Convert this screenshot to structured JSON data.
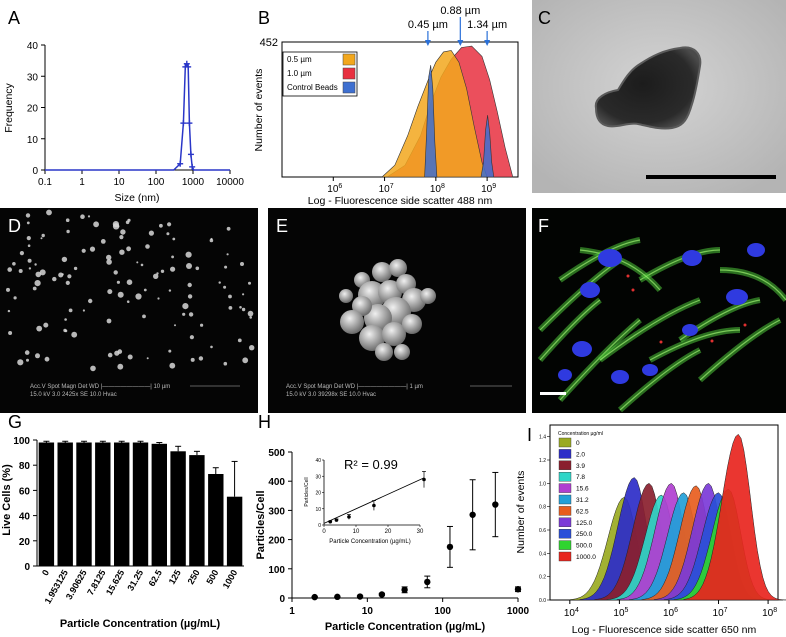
{
  "panels": {
    "a": "A",
    "b": "B",
    "c": "C",
    "d": "D",
    "e": "E",
    "f": "F",
    "g": "G",
    "h": "H",
    "i": "I"
  },
  "sem_d": {
    "line1": "Acc.V  Spot Magn   Det  WD  |————————| 10 µm",
    "line2": "15.0 kV 3.0  2425x  SE  10.0 Hvac"
  },
  "sem_e": {
    "line1": "Acc.V  Spot Magn   Det  WD  |————————| 1 µm",
    "line2": "15.0 kV 3.0  39298x  SE  10.0 Hvac"
  },
  "colors": {
    "blue_line": "#2a36c8",
    "beads": "#3e6fd0",
    "p05": "#f2a71d",
    "p10": "#e83040",
    "bar": "#000000"
  },
  "chart_data": [
    {
      "id": "A",
      "type": "line",
      "xlabel": "Size (nm)",
      "ylabel": "Frequency",
      "xscale": "log",
      "xlim": [
        0.1,
        10000
      ],
      "ylim": [
        0,
        40
      ],
      "xticks": [
        "0.1",
        "1",
        "10",
        "100",
        "1000",
        "10000"
      ],
      "yticks": [
        "0",
        "10",
        "20",
        "30",
        "40"
      ],
      "series": [
        {
          "x": [
            0.1,
            300,
            450,
            550,
            620,
            680,
            740,
            800,
            880,
            950,
            1050,
            10000
          ],
          "y": [
            0,
            0,
            2,
            15,
            33,
            34,
            33,
            15,
            5,
            1,
            0,
            0
          ]
        }
      ]
    },
    {
      "id": "B",
      "type": "area",
      "xlabel": "Log - Fluorescence side scatter 488 nm",
      "ylabel": "Number of events",
      "xscale": "log",
      "xlim": [
        100000,
        4000000000
      ],
      "ylim": [
        0,
        452
      ],
      "y_top_label": "452",
      "xticks_exp": [
        {
          "base": "10",
          "exp": "6",
          "v": 6
        },
        {
          "base": "10",
          "exp": "7",
          "v": 7
        },
        {
          "base": "10",
          "exp": "8",
          "v": 8
        },
        {
          "base": "10",
          "exp": "9",
          "v": 9
        }
      ],
      "markers": [
        {
          "label": "0.45 µm",
          "x": 70000000
        },
        {
          "label": "0.88 µm",
          "x": 300000000
        },
        {
          "label": "1.34 µm",
          "x": 1000000000
        }
      ],
      "legend": [
        "0.5 µm",
        "1.0 µm",
        "Control Beads"
      ],
      "series": [
        {
          "name": "1.0 µm",
          "color": "#e83040",
          "log10x": [
            7.05,
            7.4,
            7.7,
            7.9,
            8.1,
            8.3,
            8.5,
            8.7,
            8.9,
            9.05,
            9.2,
            9.35,
            9.5
          ],
          "y": [
            0,
            40,
            140,
            250,
            340,
            400,
            440,
            445,
            410,
            330,
            220,
            100,
            0
          ]
        },
        {
          "name": "0.5 µm",
          "color": "#f2a71d",
          "log10x": [
            6.95,
            7.2,
            7.45,
            7.65,
            7.85,
            8.0,
            8.15,
            8.3,
            8.45,
            8.6,
            8.75,
            8.9,
            9.0
          ],
          "y": [
            0,
            40,
            140,
            240,
            330,
            390,
            425,
            430,
            390,
            300,
            170,
            50,
            0
          ]
        },
        {
          "name": "Control Beads",
          "color": "#3e6fd0",
          "log10x": [
            7.78,
            7.82,
            7.86,
            7.9,
            7.94,
            7.98,
            8.02
          ],
          "y": [
            0,
            150,
            340,
            380,
            300,
            120,
            0
          ]
        },
        {
          "name": "Control Beads 2",
          "color": "#3e6fd0",
          "log10x": [
            8.88,
            8.93,
            8.97,
            9.01,
            9.05,
            9.09,
            9.13
          ],
          "y": [
            0,
            50,
            160,
            210,
            150,
            50,
            0
          ]
        }
      ]
    },
    {
      "id": "G",
      "type": "bar",
      "xlabel": "Particle Concentration  (µg/mL)",
      "ylabel": "Live Cells (%)",
      "ylim": [
        0,
        100
      ],
      "yticks": [
        "0",
        "20",
        "40",
        "60",
        "80",
        "100"
      ],
      "categories": [
        "0",
        "1.953125",
        "3.90625",
        "7.8125",
        "15.625",
        "31.25",
        "62.5",
        "125",
        "250",
        "500",
        "1000"
      ],
      "values": [
        98,
        98,
        98,
        98,
        98,
        98,
        97,
        91,
        88,
        73,
        55
      ],
      "errors": [
        1,
        1,
        1,
        1,
        1,
        1,
        1,
        4,
        3,
        5,
        28
      ]
    },
    {
      "id": "H",
      "type": "scatter",
      "xlabel": "Particle Concentration (µg/mL)",
      "ylabel": "Particles/Cell",
      "xscale": "log",
      "xlim": [
        1,
        1000
      ],
      "ylim": [
        0,
        500
      ],
      "xticks": [
        "1",
        "10",
        "100",
        "1000"
      ],
      "yticks": [
        "0",
        "100",
        "200",
        "300",
        "400",
        "500"
      ],
      "x": [
        2,
        4,
        8,
        15.6,
        31.25,
        62.5,
        125,
        250,
        500,
        1000
      ],
      "y": [
        3,
        4,
        5,
        12,
        28,
        55,
        175,
        285,
        320,
        30
      ],
      "errors": [
        2,
        2,
        2,
        4,
        10,
        20,
        70,
        120,
        110,
        8
      ],
      "inset": {
        "annotation": "R² = 0.99",
        "xlabel": "Particle Concentration  (µg/mL)",
        "ylabel": "Particles/Cell",
        "xlim": [
          0,
          30
        ],
        "ylim": [
          0,
          40
        ],
        "xticks": [
          "0",
          "10",
          "20",
          "30"
        ],
        "yticks": [
          "0",
          "10",
          "20",
          "30",
          "40"
        ],
        "x": [
          1.95,
          3.9,
          7.8,
          15.6,
          31.25
        ],
        "y": [
          2,
          3,
          5,
          12,
          28
        ],
        "errors": [
          0.5,
          0.7,
          1.5,
          3,
          5
        ]
      }
    },
    {
      "id": "I",
      "type": "area",
      "xlabel": "Log - Fluorescence side scatter 650 nm",
      "ylabel": "Number of events",
      "xscale": "log",
      "legend_title": "Concentration µg/ml",
      "yticks": [
        "0.0",
        "0.2",
        "0.4",
        "0.6",
        "0.8",
        "1.0",
        "1.2",
        "1.4"
      ],
      "ylim": [
        0,
        1.5
      ],
      "xticks_exp": [
        {
          "base": "10",
          "exp": "4",
          "v": 4
        },
        {
          "base": "10",
          "exp": "5",
          "v": 5
        },
        {
          "base": "10",
          "exp": "6",
          "v": 6
        },
        {
          "base": "10",
          "exp": "7",
          "v": 7
        },
        {
          "base": "10",
          "exp": "8",
          "v": 8
        }
      ],
      "series": [
        {
          "name": "0",
          "color": "#9aaa22",
          "center": 5.1,
          "peak": 0.88
        },
        {
          "name": "2.0",
          "color": "#2d2dc8",
          "center": 5.3,
          "peak": 1.05
        },
        {
          "name": "3.9",
          "color": "#8a1f2e",
          "center": 5.6,
          "peak": 1.0
        },
        {
          "name": "7.8",
          "color": "#2fd6c8",
          "center": 5.85,
          "peak": 0.9
        },
        {
          "name": "15.6",
          "color": "#b03fd0",
          "center": 6.05,
          "peak": 1.0
        },
        {
          "name": "31.2",
          "color": "#22a0d8",
          "center": 6.3,
          "peak": 0.92
        },
        {
          "name": "62.5",
          "color": "#e85d1e",
          "center": 6.55,
          "peak": 0.98
        },
        {
          "name": "125.0",
          "color": "#7b3ad8",
          "center": 6.8,
          "peak": 1.0
        },
        {
          "name": "250.0",
          "color": "#2a4fd8",
          "center": 7.0,
          "peak": 0.92
        },
        {
          "name": "500.0",
          "color": "#2fd42f",
          "center": 7.2,
          "peak": 0.95
        },
        {
          "name": "1000.0",
          "color": "#e8251e",
          "center": 7.4,
          "peak": 1.42
        }
      ]
    }
  ]
}
